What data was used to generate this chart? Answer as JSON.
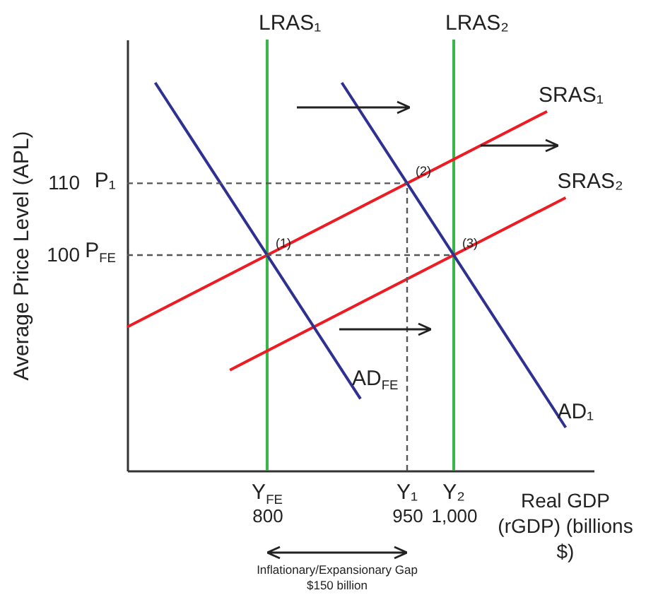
{
  "chart_data": {
    "type": "line",
    "xlabel": "Real GDP (rGDP) (billions $)",
    "ylabel": "Average Price Level (APL)",
    "xlim": [
      650,
      1150
    ],
    "xticks": [
      800,
      950,
      {
        "value": 1000,
        "label": "1,000"
      }
    ],
    "ylim": [
      70,
      130
    ],
    "yticks": [
      100,
      110
    ],
    "series": [
      {
        "name": "LRAS₁",
        "color": "#39b54a",
        "x": [
          800,
          800
        ],
        "values": [
          70,
          130
        ]
      },
      {
        "name": "LRAS₂",
        "color": "#39b54a",
        "x": [
          1000,
          1000
        ],
        "values": [
          70,
          130
        ]
      },
      {
        "name": "SRAS₁",
        "color": "#ed1c24",
        "x": [
          650,
          1100
        ],
        "values": [
          90,
          120
        ]
      },
      {
        "name": "SRAS₂",
        "color": "#ed1c24",
        "x": [
          760,
          1120
        ],
        "values": [
          84,
          108
        ]
      },
      {
        "name": "AD₁",
        "color": "#2e3192",
        "x": [
          880,
          1120
        ],
        "values": [
          124,
          76
        ]
      },
      {
        "name": "AD$_{FE}$",
        "color": "#2e3192",
        "x": [
          680,
          900
        ],
        "values": [
          124,
          80
        ]
      },
      {
        "color": "#555555",
        "line_style": "dashed",
        "x": [
          650,
          950
        ],
        "values": [
          110,
          110
        ]
      },
      {
        "color": "#555555",
        "line_style": "dashed",
        "x": [
          650,
          1000
        ],
        "values": [
          100,
          100
        ]
      },
      {
        "color": "#555555",
        "line_style": "dashed",
        "x": [
          950,
          950
        ],
        "values": [
          70,
          110
        ]
      }
    ],
    "annotations": [
      {
        "text": "(1)",
        "x": 800,
        "y": 100
      },
      {
        "text": "(2)",
        "x": 950,
        "y": 110
      },
      {
        "text": "(3)",
        "x": 1000,
        "y": 100
      },
      "P$_{FE}$",
      "P₁",
      "Y$_{FE}$",
      "Y₁",
      "Y₂",
      "Inflationary/Expansionary Gap",
      "$150 billion"
    ]
  }
}
